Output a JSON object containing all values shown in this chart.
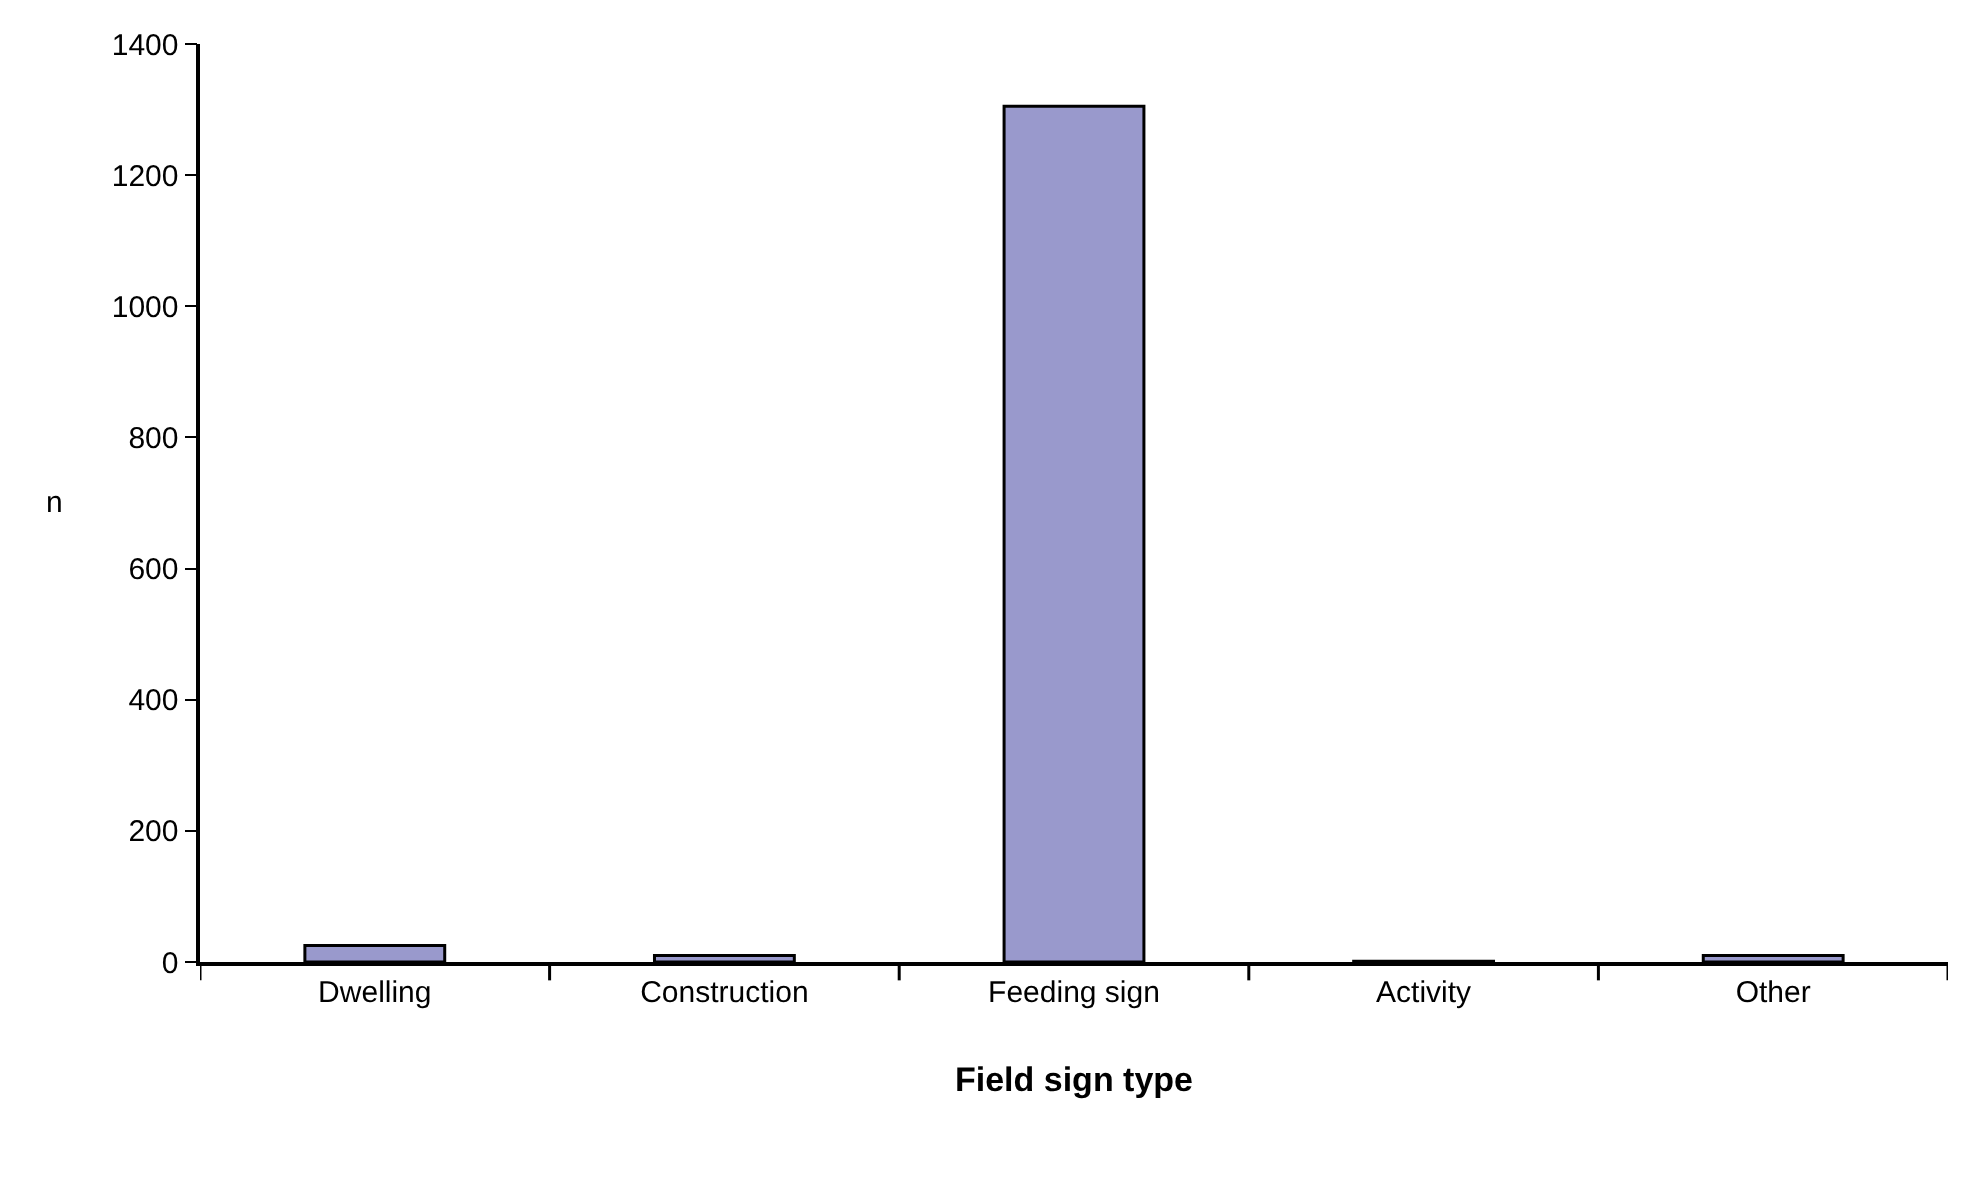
{
  "chart_data": {
    "type": "bar",
    "xlabel": "Field sign type",
    "ylabel": "n",
    "categories": [
      "Dwelling",
      "Construction",
      "Feeding sign",
      "Activity",
      "Other"
    ],
    "values": [
      25,
      10,
      1305,
      1,
      10
    ],
    "color": "#9999cc",
    "ylim": [
      0,
      1400
    ],
    "yticks": [
      0,
      200,
      400,
      600,
      800,
      1000,
      1200,
      1400
    ]
  }
}
